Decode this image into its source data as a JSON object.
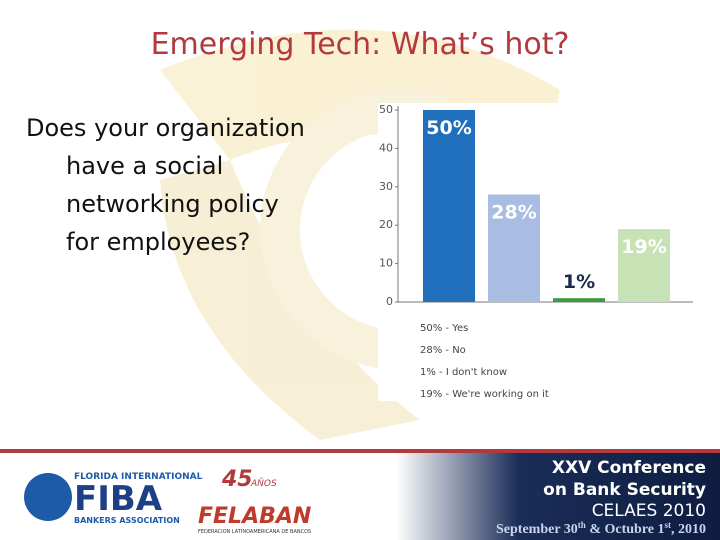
{
  "title": "Emerging Tech: What’s hot?",
  "question": [
    "Does your organization",
    "have a social",
    "networking policy",
    "for employees?"
  ],
  "chart_data": {
    "type": "bar",
    "categories": [
      "50% - Yes",
      "28% - No",
      "1% - I don't know",
      "19% - We're working on it"
    ],
    "values": [
      50,
      28,
      1,
      19
    ],
    "value_labels": [
      "50%",
      "28%",
      "1%",
      "19%"
    ],
    "colors": [
      "#1f6fbd",
      "#a9bde3",
      "#3d9a3d",
      "#c7e3b6"
    ],
    "ylim": [
      0,
      50
    ],
    "yticks": [
      0,
      10,
      20,
      30,
      40,
      50
    ],
    "grid": false
  },
  "footer": {
    "fiba": [
      "FLORIDA INTERNATIONAL",
      "FIBA",
      "BANKERS ASSOCIATION"
    ],
    "felaban": [
      "45",
      "AÑOS",
      "FELABAN",
      "FEDERACION LATINOAMERICANA DE BANCOS"
    ],
    "conference": [
      "XXV Conference",
      "on Bank Security",
      "CELAES 2010"
    ],
    "date": [
      "September 30",
      "th",
      " & Octubre 1",
      "st",
      ", 2010"
    ]
  }
}
